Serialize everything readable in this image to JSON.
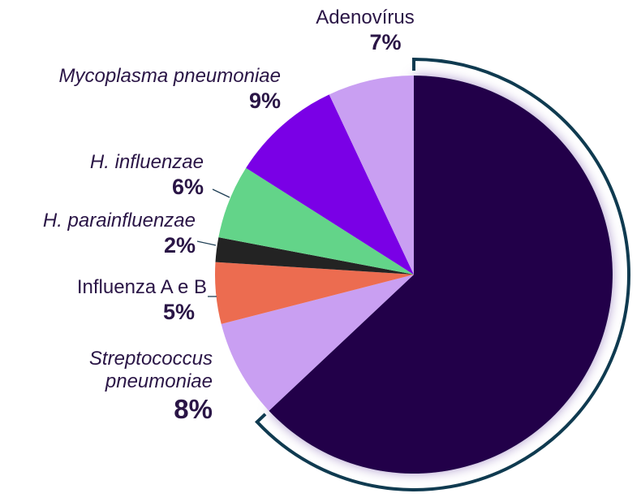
{
  "chart_data": {
    "type": "pie",
    "categories": [
      null,
      "Streptococcus pneumoniae",
      "Influenza A e B",
      "H. parainfluenzae",
      "H. influenzae",
      "Mycoplasma pneumoniae",
      "Adenovírus"
    ],
    "values": [
      63,
      8,
      5,
      2,
      6,
      9,
      7
    ],
    "value_labels": [
      null,
      "8%",
      "5%",
      "2%",
      "6%",
      "9%",
      "7%"
    ],
    "colors": [
      "#22004a",
      "#c99ff2",
      "#ec6c50",
      "#232323",
      "#63d489",
      "#7a00e6",
      "#c99ff2"
    ]
  }
}
